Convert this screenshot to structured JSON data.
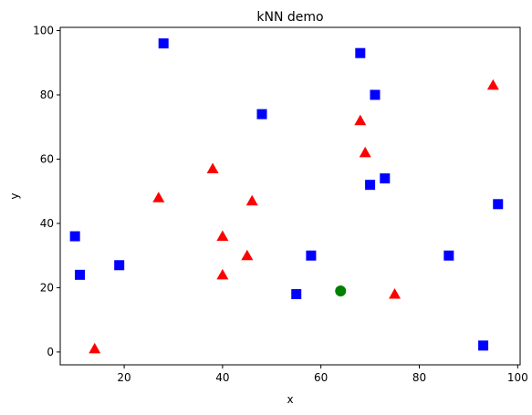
{
  "chart_data": {
    "type": "scatter",
    "title": "kNN demo",
    "xlabel": "x",
    "ylabel": "y",
    "xlim": [
      7,
      100.5
    ],
    "ylim": [
      -4,
      101
    ],
    "xticks": [
      20,
      40,
      60,
      80,
      100
    ],
    "yticks": [
      0,
      20,
      40,
      60,
      80,
      100
    ],
    "grid": false,
    "series": [
      {
        "marker": "square",
        "color": "#0000ff",
        "points": [
          [
            28,
            96
          ],
          [
            68,
            93
          ],
          [
            71,
            80
          ],
          [
            48,
            74
          ],
          [
            73,
            54
          ],
          [
            70,
            52
          ],
          [
            96,
            46
          ],
          [
            10,
            36
          ],
          [
            11,
            24
          ],
          [
            19,
            27
          ],
          [
            58,
            30
          ],
          [
            55,
            18
          ],
          [
            86,
            30
          ],
          [
            93,
            2
          ]
        ]
      },
      {
        "marker": "triangle",
        "color": "#ff0000",
        "points": [
          [
            95,
            83
          ],
          [
            68,
            72
          ],
          [
            69,
            62
          ],
          [
            38,
            57
          ],
          [
            27,
            48
          ],
          [
            46,
            47
          ],
          [
            40,
            36
          ],
          [
            45,
            30
          ],
          [
            40,
            24
          ],
          [
            75,
            18
          ],
          [
            14,
            1
          ]
        ]
      },
      {
        "marker": "circle",
        "color": "#008000",
        "points": [
          [
            64,
            19
          ]
        ]
      }
    ]
  }
}
